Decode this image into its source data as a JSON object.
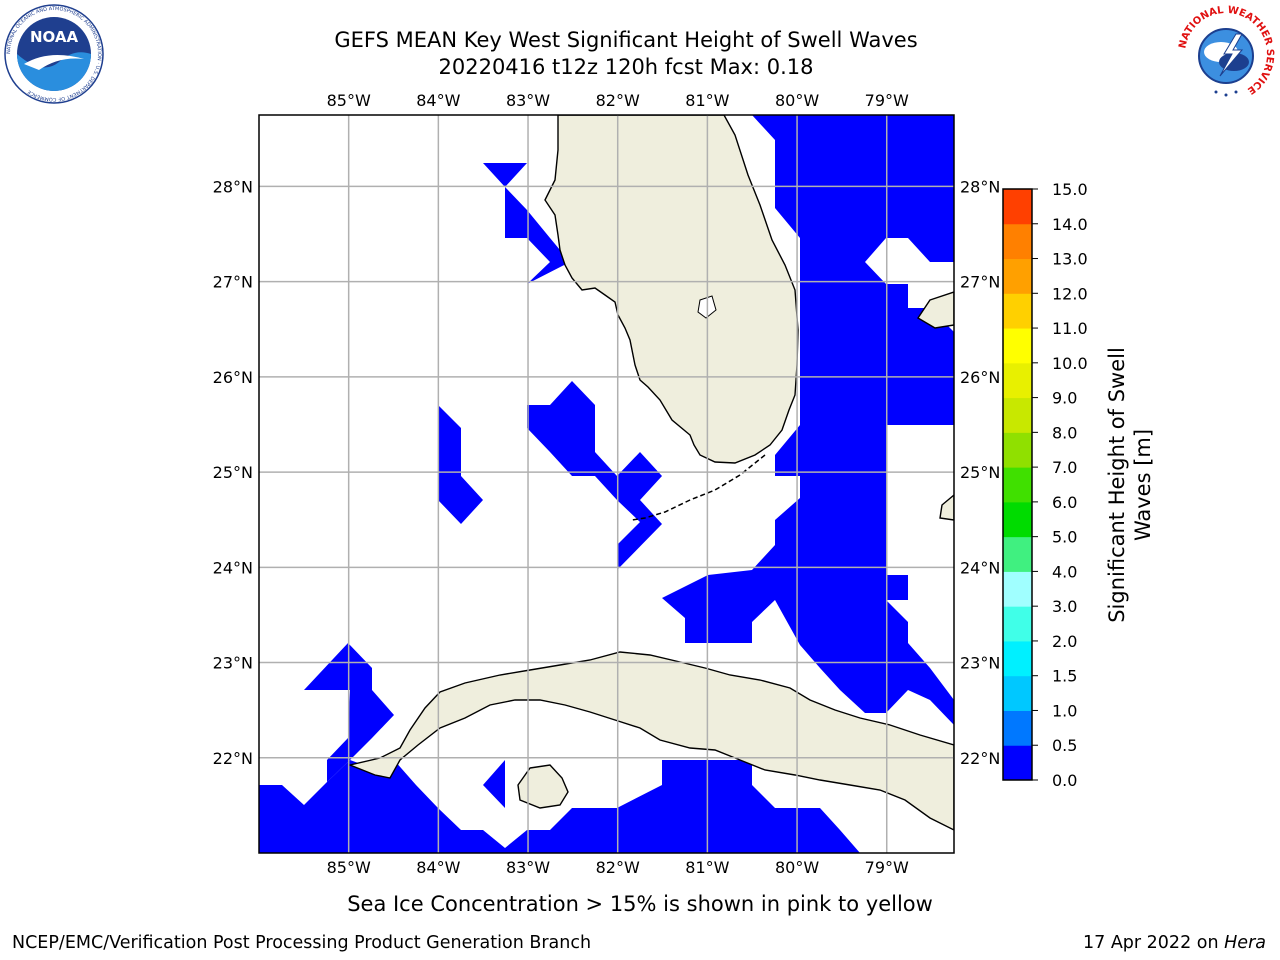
{
  "title": {
    "line1": "GEFS MEAN Key West Significant Height of Swell Waves",
    "line2": "20220416 t12z 120h fcst   Max: 0.18"
  },
  "logos": {
    "left": {
      "icon": "noaa-logo",
      "text": "NOAA",
      "ring_text": "NATIONAL OCEANIC AND ATMOSPHERIC ADMINISTRATION · U.S. DEPARTMENT OF COMMERCE"
    },
    "right": {
      "icon": "nws-logo",
      "ring_text": "NATIONAL WEATHER SERVICE"
    }
  },
  "map": {
    "lon_labels": [
      "85°W",
      "84°W",
      "83°W",
      "82°W",
      "81°W",
      "80°W",
      "79°W"
    ],
    "lat_labels": [
      "22°N",
      "23°N",
      "24°N",
      "25°N",
      "26°N",
      "27°N",
      "28°N"
    ],
    "lon_range": [
      -86.0,
      -78.25
    ],
    "lat_range": [
      21.0,
      28.75
    ],
    "colors": {
      "land": "#efeedd",
      "ocean": "#ffffff",
      "swell_low": "#0000ff",
      "grid": "#b0b0b0"
    }
  },
  "colorbar": {
    "label": "Significant Height of Swell Waves [m]",
    "ticks": [
      "0.0",
      "0.5",
      "1.0",
      "1.5",
      "2.0",
      "3.0",
      "4.0",
      "5.0",
      "6.0",
      "7.0",
      "8.0",
      "9.0",
      "10.0",
      "11.0",
      "12.0",
      "13.0",
      "14.0",
      "15.0"
    ],
    "colors": [
      "#0000ff",
      "#0078ff",
      "#00c8ff",
      "#00f0ff",
      "#40ffe8",
      "#a0ffff",
      "#40f080",
      "#00dc00",
      "#40e000",
      "#90e000",
      "#c8e800",
      "#e8f000",
      "#ffff00",
      "#ffd000",
      "#ffa000",
      "#ff8000",
      "#ff4000",
      "#ff0000"
    ]
  },
  "footer": {
    "note": "Sea Ice Concentration > 15% is shown in pink to yellow",
    "left": "NCEP/EMC/Verification Post Processing Product Generation Branch",
    "right_date": "17 Apr 2022 on ",
    "right_host": "Hera"
  }
}
